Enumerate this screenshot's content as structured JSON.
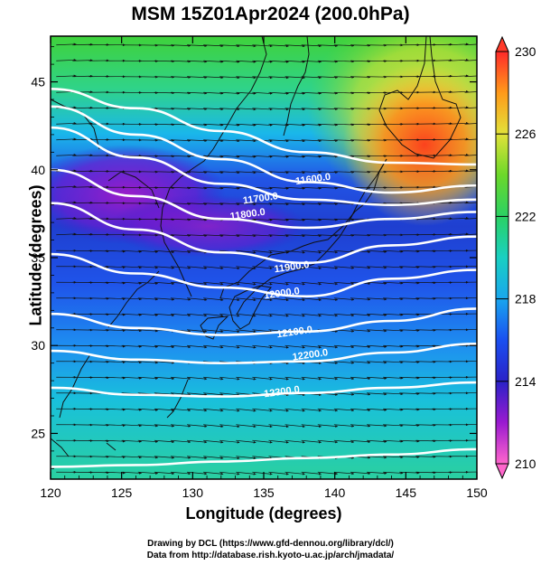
{
  "title": "MSM 15Z01Apr2024 (200.0hPa)",
  "xlabel": "Longitude (degrees)",
  "ylabel": "Latitude  (degrees)",
  "credits": {
    "line1": "Drawing by DCL (https://www.gfd-dennou.org/library/dcl/)",
    "line2": "Data from http://database.rish.kyoto-u.ac.jp/arch/jmadata/"
  },
  "chart_data": {
    "type": "heatmap",
    "x_range": [
      120,
      150
    ],
    "y_range": [
      22.4,
      47.6
    ],
    "x_ticks": [
      120,
      125,
      130,
      135,
      140,
      145,
      150
    ],
    "y_ticks": [
      25,
      30,
      35,
      40,
      45
    ],
    "colorbar": {
      "ticks": [
        210,
        214,
        218,
        222,
        226,
        230
      ],
      "range": [
        210,
        230
      ],
      "colors": [
        "#ff66cc",
        "#9a1ad0",
        "#2222cc",
        "#1a66ff",
        "#19c3e0",
        "#2bd17a",
        "#5ad62a",
        "#e6e63a",
        "#ff9a1a",
        "#ff2a2a"
      ]
    },
    "contour_labels": [
      {
        "text": "11600.0",
        "lon": 138.5,
        "lat": 39.3
      },
      {
        "text": "11700.0",
        "lon": 134.8,
        "lat": 38.2
      },
      {
        "text": "11800.0",
        "lon": 133.9,
        "lat": 37.3
      },
      {
        "text": "11900.0",
        "lon": 137.0,
        "lat": 34.3
      },
      {
        "text": "12000.0",
        "lon": 136.3,
        "lat": 32.8
      },
      {
        "text": "12100.0",
        "lon": 137.2,
        "lat": 30.6
      },
      {
        "text": "12200.0",
        "lon": 138.3,
        "lat": 29.3
      },
      {
        "text": "12300.0",
        "lon": 136.3,
        "lat": 27.2
      }
    ],
    "contours": [
      {
        "lat": [
          44.6,
          43.5,
          42.2,
          41.0,
          40.4,
          40.3
        ]
      },
      {
        "lat": [
          43.6,
          42.0,
          40.6,
          39.3,
          38.7,
          39.1
        ]
      },
      {
        "lat": [
          42.4,
          40.7,
          39.2,
          38.3,
          38.0,
          38.3
        ]
      },
      {
        "lat": [
          40.0,
          38.5,
          37.2,
          36.7,
          37.2,
          37.6
        ]
      },
      {
        "lat": [
          38.1,
          36.6,
          35.3,
          34.7,
          35.7,
          36.2
        ]
      },
      {
        "lat": [
          35.2,
          34.1,
          33.3,
          32.8,
          33.8,
          34.3
        ]
      },
      {
        "lat": [
          31.8,
          31.0,
          30.6,
          30.8,
          31.4,
          32.1
        ]
      },
      {
        "lat": [
          29.7,
          29.2,
          29.0,
          29.1,
          29.6,
          30.1
        ]
      },
      {
        "lat": [
          27.6,
          27.2,
          27.1,
          27.3,
          27.6,
          27.9
        ]
      },
      {
        "lat": [
          23.1,
          23.2,
          23.4,
          23.6,
          23.8,
          24.1
        ]
      }
    ],
    "contour_lons": [
      120,
      126,
      132,
      138,
      144,
      150
    ]
  }
}
